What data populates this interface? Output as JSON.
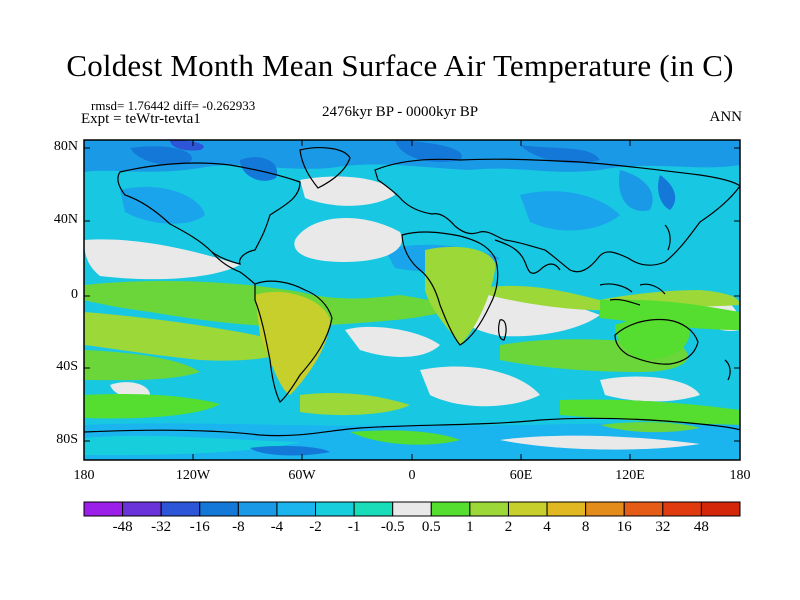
{
  "title": "Coldest Month Mean Surface Air Temperature (in C)",
  "stats_text": "rmsd= 1.76442 diff= -0.262933",
  "experiment_text": "Expt = teWtr-tevta1",
  "period_text": "2476kyr BP - 0000kyr BP",
  "season_text": "ANN",
  "lat_labels": [
    "80N",
    "40N",
    "0",
    "40S",
    "80S"
  ],
  "lon_labels": [
    "180",
    "120W",
    "60W",
    "0",
    "60E",
    "120E",
    "180"
  ],
  "colorbar": {
    "labels": [
      "-48",
      "-32",
      "-16",
      "-8",
      "-4",
      "-2",
      "-1",
      "-0.5",
      "0.5",
      "1",
      "2",
      "4",
      "8",
      "16",
      "32",
      "48"
    ],
    "colors": [
      "#9b1fe8",
      "#6a33d9",
      "#2c55d8",
      "#1478d8",
      "#1a9ae6",
      "#1ab4ef",
      "#17cfdc",
      "#19dcb8",
      "#e9e9e9",
      "#55dd2f",
      "#9bd838",
      "#c7cf2c",
      "#e1b822",
      "#e48c1b",
      "#e45c16",
      "#df3b0f",
      "#d42608"
    ]
  }
}
